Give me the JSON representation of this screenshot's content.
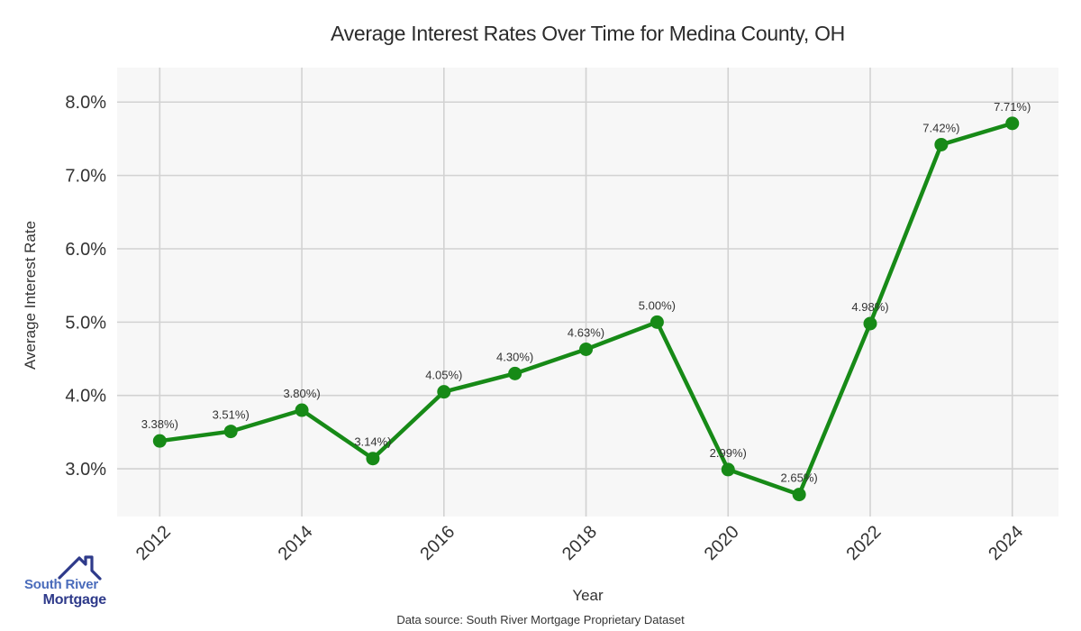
{
  "chart_data": {
    "type": "line",
    "title": "Average Interest Rates Over Time for Medina County, OH",
    "xlabel": "Year",
    "ylabel": "Average Interest Rate",
    "x": [
      2012,
      2013,
      2014,
      2015,
      2016,
      2017,
      2018,
      2019,
      2020,
      2021,
      2022,
      2023,
      2024
    ],
    "values": [
      3.38,
      3.51,
      3.8,
      3.14,
      4.05,
      4.3,
      4.63,
      5.0,
      2.99,
      2.65,
      4.98,
      7.42,
      7.71
    ],
    "point_labels": [
      "3.38%)",
      "3.51%)",
      "3.80%)",
      "3.14%)",
      "4.05%)",
      "4.30%)",
      "4.63%)",
      "5.00%)",
      "2.99%)",
      "2.65%)",
      "4.98%)",
      "7.42%)",
      "7.71%)"
    ],
    "xticks": {
      "values": [
        2012,
        2014,
        2016,
        2018,
        2020,
        2022,
        2024
      ],
      "labels": [
        "2012",
        "2014",
        "2016",
        "2018",
        "2020",
        "2022",
        "2024"
      ]
    },
    "yticks": {
      "values": [
        3,
        4,
        5,
        6,
        7,
        8
      ],
      "labels": [
        "3.0%",
        "4.0%",
        "5.0%",
        "6.0%",
        "7.0%",
        "8.0%"
      ]
    },
    "xlim": [
      2011.4,
      2024.65
    ],
    "ylim": [
      2.35,
      8.47
    ],
    "grid": true,
    "legend": "none",
    "line_color": "#178a17",
    "marker_color": "#178a17",
    "plot_bg": "#f7f7f7",
    "grid_color": "#d2d2d2",
    "text_color": "#333333"
  },
  "footer": {
    "text": "Data source: South River Mortgage Proprietary Dataset"
  },
  "logo": {
    "line1": "South River",
    "line2": "Mortgage",
    "color_line1": "#4a6cbb",
    "color_line2": "#2e3a8a",
    "house_color": "#2e3a8a"
  }
}
